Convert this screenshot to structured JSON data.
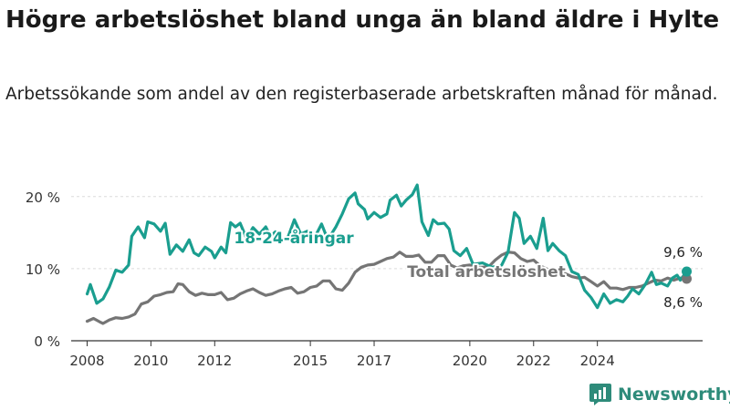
{
  "title": "Högre arbetslöshet bland unga än bland äldre i Hylte",
  "subtitle": "Arbetssökande som andel av den registerbaserade arbetskraften månad för månad.",
  "brand": {
    "name": "Newsworthy"
  },
  "colors": {
    "youth": "#1a9e8f",
    "total": "#757575",
    "grid": "#dcdcdc",
    "axis": "#333333"
  },
  "chart_data": {
    "type": "line",
    "xlabel": "",
    "ylabel": "",
    "x_ticks": [
      "2008",
      "2010",
      "2012",
      "2015",
      "2017",
      "2020",
      "2022",
      "2024"
    ],
    "y_ticks": [
      "0 %",
      "10 %",
      "20 %"
    ],
    "ylim": [
      0,
      22
    ],
    "grid": true,
    "series": [
      {
        "name": "18-24-åringar",
        "end_label": "9,6 %",
        "color": "#1a9e8f",
        "points": [
          [
            2008.0,
            6.5
          ],
          [
            2008.1,
            7.8
          ],
          [
            2008.3,
            5.2
          ],
          [
            2008.5,
            5.8
          ],
          [
            2008.7,
            7.5
          ],
          [
            2008.9,
            9.8
          ],
          [
            2009.1,
            9.5
          ],
          [
            2009.3,
            10.5
          ],
          [
            2009.4,
            14.5
          ],
          [
            2009.6,
            15.8
          ],
          [
            2009.8,
            14.3
          ],
          [
            2009.9,
            16.5
          ],
          [
            2010.1,
            16.2
          ],
          [
            2010.3,
            15.2
          ],
          [
            2010.45,
            16.3
          ],
          [
            2010.6,
            12.0
          ],
          [
            2010.8,
            13.3
          ],
          [
            2011.0,
            12.4
          ],
          [
            2011.2,
            14.0
          ],
          [
            2011.35,
            12.2
          ],
          [
            2011.5,
            11.8
          ],
          [
            2011.7,
            13.0
          ],
          [
            2011.9,
            12.4
          ],
          [
            2012.0,
            11.5
          ],
          [
            2012.2,
            13.0
          ],
          [
            2012.35,
            12.2
          ],
          [
            2012.5,
            16.4
          ],
          [
            2012.65,
            15.8
          ],
          [
            2012.8,
            16.3
          ],
          [
            2013.0,
            14.2
          ],
          [
            2013.2,
            15.7
          ],
          [
            2013.4,
            14.8
          ],
          [
            2013.6,
            15.8
          ],
          [
            2013.75,
            14.5
          ],
          [
            2013.9,
            15.1
          ],
          [
            2014.1,
            13.8
          ],
          [
            2014.3,
            14.4
          ],
          [
            2014.5,
            16.8
          ],
          [
            2014.7,
            14.8
          ],
          [
            2014.9,
            15.2
          ],
          [
            2015.1,
            14.0
          ],
          [
            2015.35,
            16.2
          ],
          [
            2015.55,
            14.0
          ],
          [
            2015.8,
            15.8
          ],
          [
            2016.0,
            17.6
          ],
          [
            2016.2,
            19.7
          ],
          [
            2016.4,
            20.5
          ],
          [
            2016.5,
            19.0
          ],
          [
            2016.7,
            18.2
          ],
          [
            2016.8,
            16.9
          ],
          [
            2017.0,
            17.8
          ],
          [
            2017.2,
            17.1
          ],
          [
            2017.4,
            17.6
          ],
          [
            2017.5,
            19.5
          ],
          [
            2017.7,
            20.2
          ],
          [
            2017.85,
            18.7
          ],
          [
            2018.0,
            19.5
          ],
          [
            2018.2,
            20.3
          ],
          [
            2018.35,
            21.6
          ],
          [
            2018.5,
            16.5
          ],
          [
            2018.7,
            14.6
          ],
          [
            2018.85,
            16.8
          ],
          [
            2019.0,
            16.2
          ],
          [
            2019.2,
            16.3
          ],
          [
            2019.35,
            15.5
          ],
          [
            2019.5,
            12.5
          ],
          [
            2019.7,
            11.8
          ],
          [
            2019.9,
            12.8
          ],
          [
            2020.1,
            10.6
          ],
          [
            2020.4,
            10.8
          ],
          [
            2020.7,
            10.2
          ],
          [
            2021.0,
            10.5
          ],
          [
            2021.2,
            12.3
          ],
          [
            2021.4,
            17.8
          ],
          [
            2021.55,
            17.0
          ],
          [
            2021.7,
            13.5
          ],
          [
            2021.9,
            14.5
          ],
          [
            2022.1,
            12.8
          ],
          [
            2022.3,
            17.0
          ],
          [
            2022.45,
            12.5
          ],
          [
            2022.6,
            13.5
          ],
          [
            2022.8,
            12.5
          ],
          [
            2023.0,
            11.8
          ],
          [
            2023.2,
            9.6
          ],
          [
            2023.4,
            9.2
          ],
          [
            2023.6,
            7.0
          ],
          [
            2023.8,
            6.0
          ],
          [
            2024.0,
            4.6
          ],
          [
            2024.2,
            6.5
          ],
          [
            2024.4,
            5.2
          ],
          [
            2024.6,
            5.7
          ],
          [
            2024.8,
            5.4
          ],
          [
            2024.95,
            6.2
          ],
          [
            2025.1,
            7.2
          ],
          [
            2025.3,
            6.5
          ],
          [
            2025.5,
            7.8
          ],
          [
            2025.7,
            9.5
          ],
          [
            2025.85,
            7.8
          ],
          [
            2026.0,
            8.0
          ],
          [
            2026.2,
            7.6
          ],
          [
            2026.35,
            8.7
          ],
          [
            2026.5,
            9.1
          ],
          [
            2026.6,
            8.4
          ],
          [
            2026.8,
            9.6
          ]
        ]
      },
      {
        "name": "Total arbetslöshet",
        "end_label": "8,6 %",
        "color": "#757575",
        "points": [
          [
            2008.0,
            2.7
          ],
          [
            2008.2,
            3.1
          ],
          [
            2008.4,
            2.6
          ],
          [
            2008.5,
            2.4
          ],
          [
            2008.7,
            2.9
          ],
          [
            2008.9,
            3.2
          ],
          [
            2009.1,
            3.1
          ],
          [
            2009.3,
            3.3
          ],
          [
            2009.5,
            3.7
          ],
          [
            2009.7,
            5.1
          ],
          [
            2009.9,
            5.4
          ],
          [
            2010.1,
            6.2
          ],
          [
            2010.3,
            6.4
          ],
          [
            2010.5,
            6.7
          ],
          [
            2010.7,
            6.8
          ],
          [
            2010.85,
            7.9
          ],
          [
            2011.0,
            7.8
          ],
          [
            2011.2,
            6.8
          ],
          [
            2011.4,
            6.3
          ],
          [
            2011.6,
            6.6
          ],
          [
            2011.8,
            6.4
          ],
          [
            2012.0,
            6.4
          ],
          [
            2012.2,
            6.7
          ],
          [
            2012.4,
            5.7
          ],
          [
            2012.6,
            5.9
          ],
          [
            2012.8,
            6.5
          ],
          [
            2013.0,
            6.9
          ],
          [
            2013.2,
            7.2
          ],
          [
            2013.4,
            6.7
          ],
          [
            2013.6,
            6.3
          ],
          [
            2013.8,
            6.5
          ],
          [
            2014.0,
            6.9
          ],
          [
            2014.2,
            7.2
          ],
          [
            2014.4,
            7.4
          ],
          [
            2014.6,
            6.6
          ],
          [
            2014.8,
            6.8
          ],
          [
            2015.0,
            7.4
          ],
          [
            2015.2,
            7.6
          ],
          [
            2015.4,
            8.3
          ],
          [
            2015.6,
            8.3
          ],
          [
            2015.8,
            7.2
          ],
          [
            2016.0,
            7.0
          ],
          [
            2016.2,
            8.0
          ],
          [
            2016.4,
            9.5
          ],
          [
            2016.6,
            10.2
          ],
          [
            2016.8,
            10.5
          ],
          [
            2017.0,
            10.6
          ],
          [
            2017.2,
            11.0
          ],
          [
            2017.4,
            11.4
          ],
          [
            2017.6,
            11.6
          ],
          [
            2017.8,
            12.3
          ],
          [
            2018.0,
            11.7
          ],
          [
            2018.2,
            11.7
          ],
          [
            2018.4,
            11.9
          ],
          [
            2018.6,
            10.9
          ],
          [
            2018.8,
            10.9
          ],
          [
            2019.0,
            11.8
          ],
          [
            2019.2,
            11.8
          ],
          [
            2019.4,
            10.5
          ],
          [
            2019.6,
            10.1
          ],
          [
            2019.8,
            10.4
          ],
          [
            2020.0,
            10.5
          ],
          [
            2020.2,
            10.2
          ],
          [
            2020.4,
            10.2
          ],
          [
            2020.6,
            10.3
          ],
          [
            2020.8,
            11.2
          ],
          [
            2021.0,
            11.9
          ],
          [
            2021.2,
            12.3
          ],
          [
            2021.4,
            12.2
          ],
          [
            2021.6,
            11.4
          ],
          [
            2021.8,
            11.0
          ],
          [
            2022.0,
            11.2
          ],
          [
            2022.2,
            10.4
          ],
          [
            2022.4,
            10.0
          ],
          [
            2022.6,
            9.5
          ],
          [
            2022.8,
            9.6
          ],
          [
            2023.0,
            9.3
          ],
          [
            2023.2,
            8.9
          ],
          [
            2023.4,
            8.7
          ],
          [
            2023.6,
            8.8
          ],
          [
            2023.8,
            8.2
          ],
          [
            2024.0,
            7.6
          ],
          [
            2024.2,
            8.2
          ],
          [
            2024.4,
            7.3
          ],
          [
            2024.6,
            7.3
          ],
          [
            2024.8,
            7.1
          ],
          [
            2025.0,
            7.4
          ],
          [
            2025.2,
            7.4
          ],
          [
            2025.4,
            7.6
          ],
          [
            2025.6,
            8.0
          ],
          [
            2025.8,
            8.4
          ],
          [
            2026.0,
            8.3
          ],
          [
            2026.2,
            8.7
          ],
          [
            2026.4,
            8.4
          ],
          [
            2026.6,
            8.7
          ],
          [
            2026.8,
            8.6
          ]
        ]
      }
    ]
  }
}
